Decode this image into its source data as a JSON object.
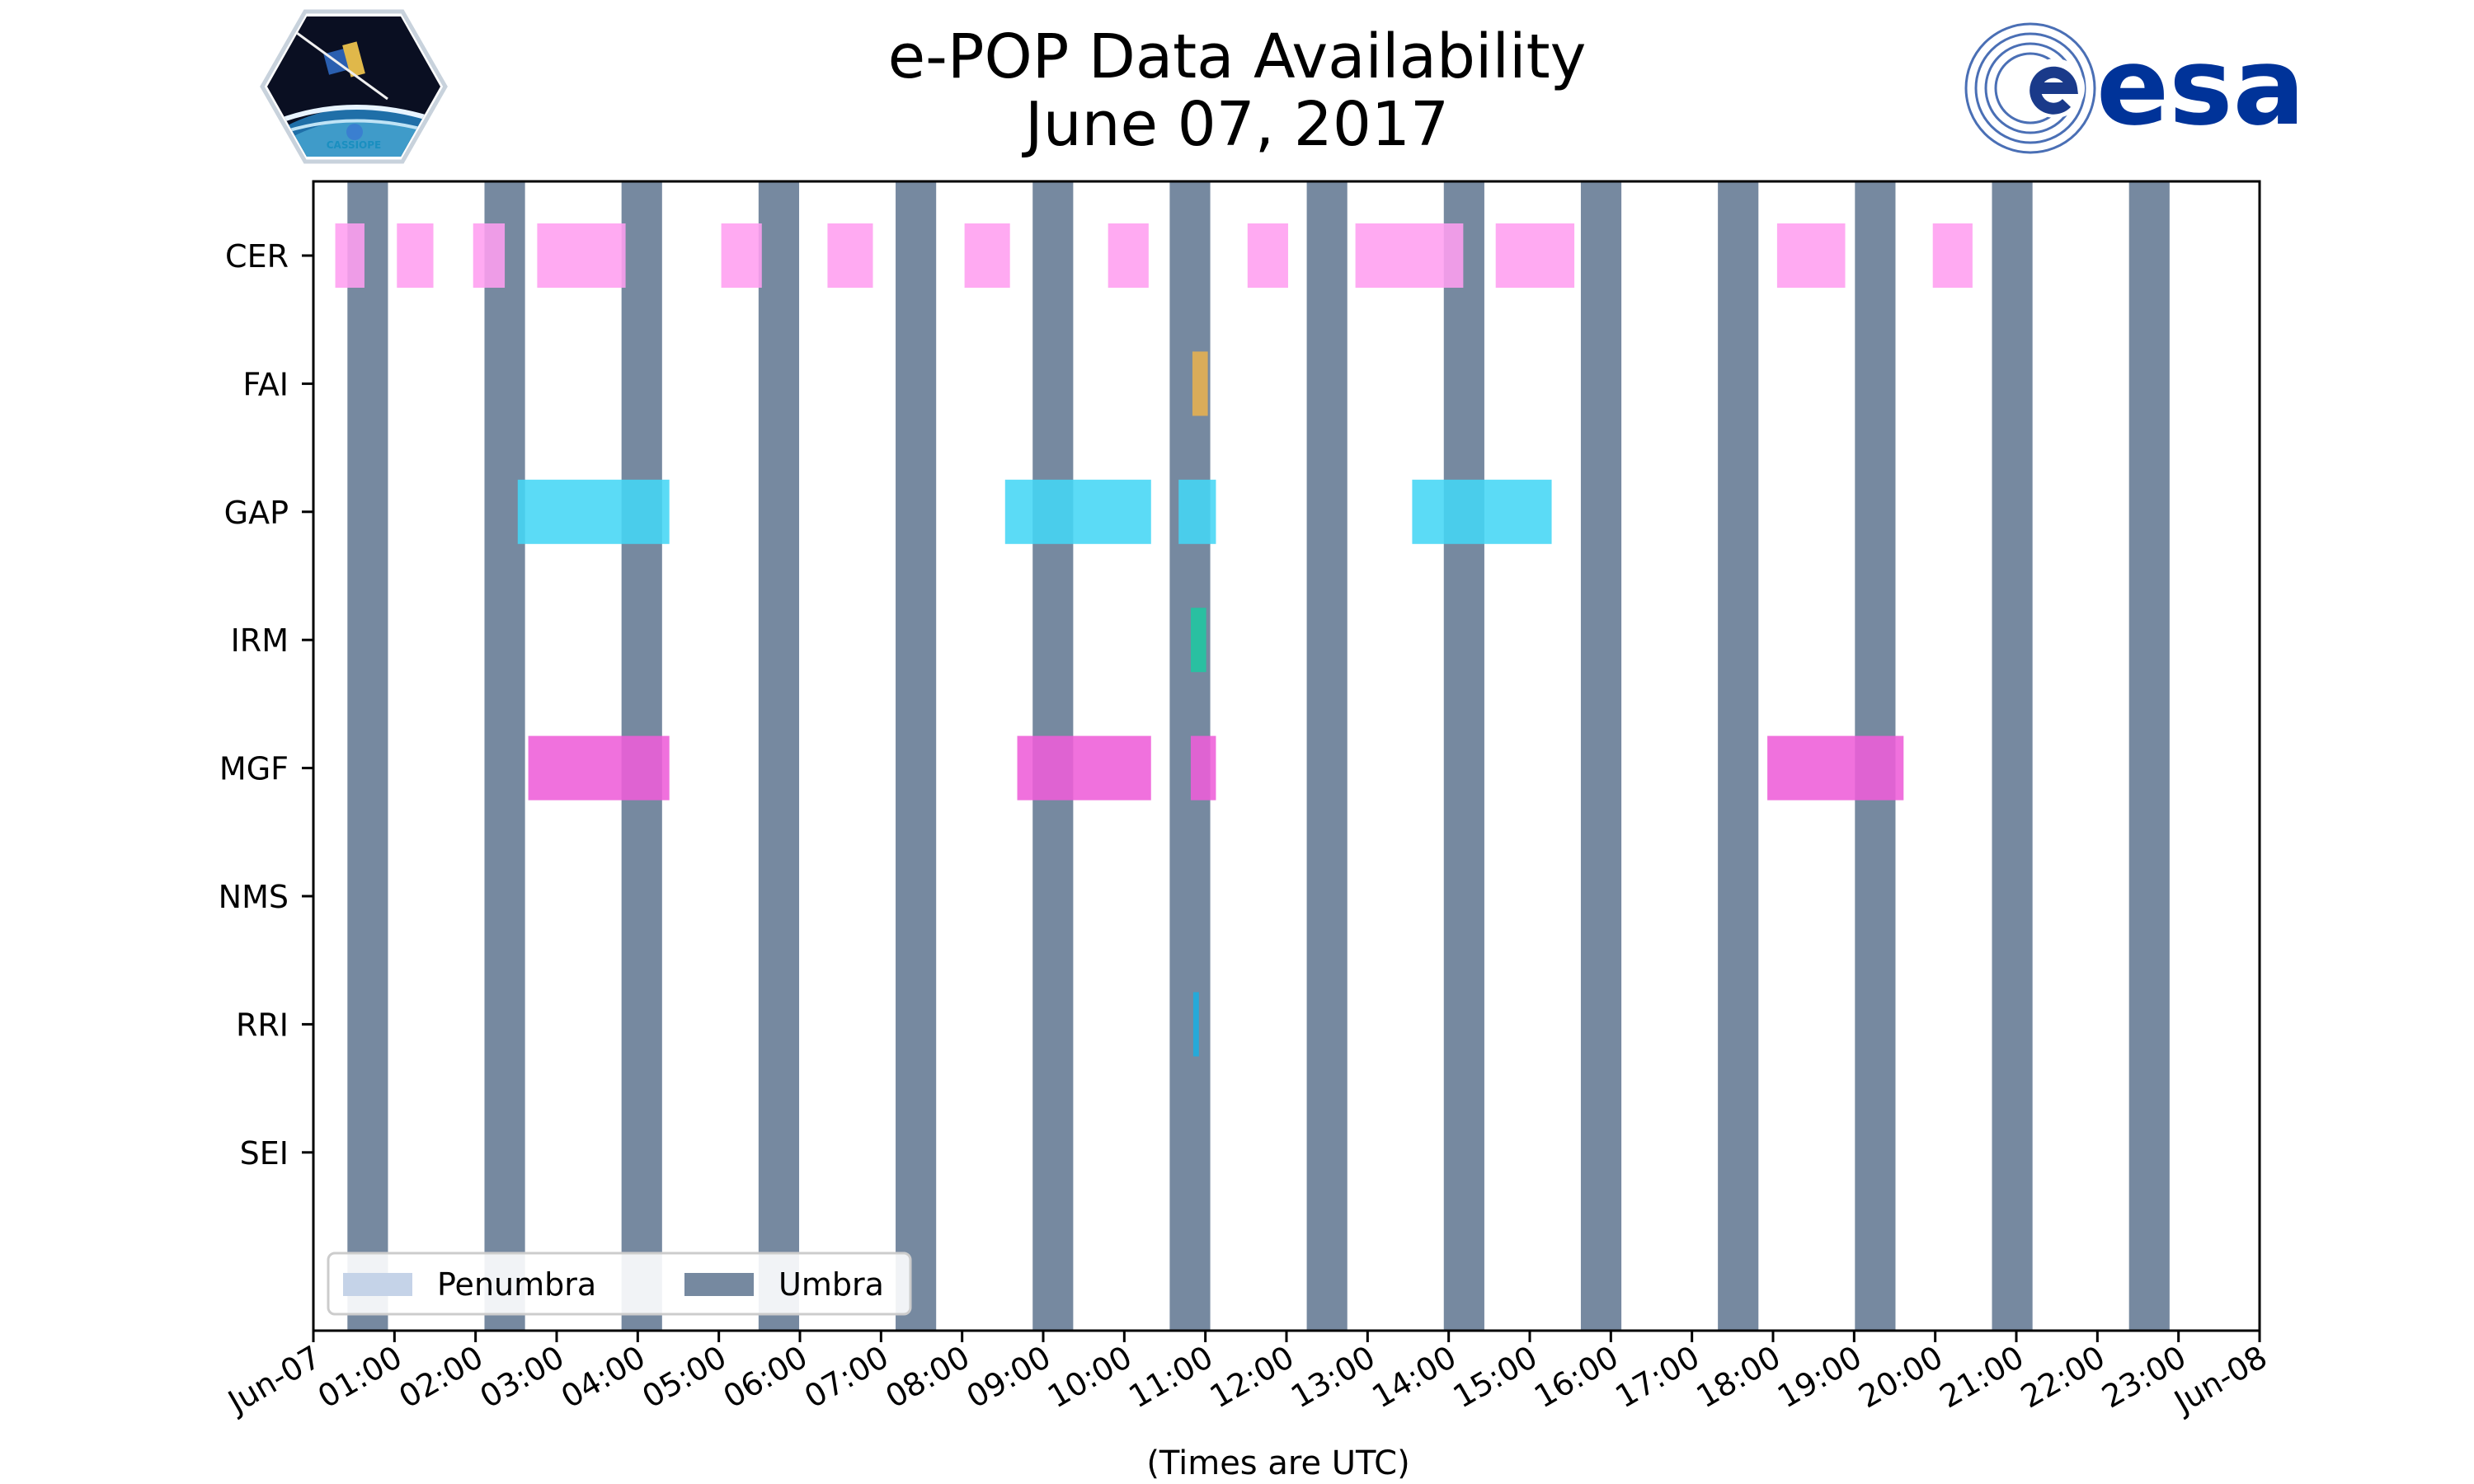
{
  "logos": {
    "left_caption": "CASSIOPE",
    "right_text": "esa"
  },
  "chart_data": {
    "type": "timeline",
    "title": "e-POP Data Availability",
    "subtitle": "June 07, 2017",
    "xlabel": "(Times are UTC)",
    "x_unit": "hours UTC",
    "xlim": [
      0,
      24
    ],
    "x_ticks": [
      0,
      1,
      2,
      3,
      4,
      5,
      6,
      7,
      8,
      9,
      10,
      11,
      12,
      13,
      14,
      15,
      16,
      17,
      18,
      19,
      20,
      21,
      22,
      23,
      24
    ],
    "x_tick_labels": [
      "Jun-07",
      "01:00",
      "02:00",
      "03:00",
      "04:00",
      "05:00",
      "06:00",
      "07:00",
      "08:00",
      "09:00",
      "10:00",
      "11:00",
      "12:00",
      "13:00",
      "14:00",
      "15:00",
      "16:00",
      "17:00",
      "18:00",
      "19:00",
      "20:00",
      "21:00",
      "22:00",
      "23:00",
      "Jun-08"
    ],
    "instruments": [
      "CER",
      "FAI",
      "GAP",
      "IRM",
      "MGF",
      "NMS",
      "RRI",
      "SEI"
    ],
    "umbra_intervals": [
      [
        0.42,
        0.92
      ],
      [
        2.11,
        2.61
      ],
      [
        3.8,
        4.3
      ],
      [
        5.49,
        5.99
      ],
      [
        7.18,
        7.68
      ],
      [
        8.87,
        9.37
      ],
      [
        10.56,
        11.06
      ],
      [
        12.25,
        12.75
      ],
      [
        13.94,
        14.44
      ],
      [
        15.63,
        16.13
      ],
      [
        17.32,
        17.82
      ],
      [
        19.01,
        19.51
      ],
      [
        20.7,
        21.2
      ],
      [
        22.39,
        22.89
      ]
    ],
    "penumbra_intervals": [],
    "legend": [
      {
        "label": "Penumbra",
        "color": "#c5d3e8"
      },
      {
        "label": "Umbra",
        "color": "#7689a0"
      }
    ],
    "legend_position": "lower-left",
    "series": [
      {
        "name": "CER",
        "color": "#ff9ef0",
        "intervals": [
          [
            0.27,
            0.63
          ],
          [
            1.03,
            1.48
          ],
          [
            1.97,
            2.36
          ],
          [
            2.76,
            3.85
          ],
          [
            5.03,
            5.53
          ],
          [
            6.34,
            6.9
          ],
          [
            8.03,
            8.59
          ],
          [
            9.8,
            10.3
          ],
          [
            11.52,
            12.02
          ],
          [
            12.85,
            14.18
          ],
          [
            14.58,
            15.55
          ],
          [
            18.05,
            18.89
          ],
          [
            19.97,
            20.46
          ]
        ]
      },
      {
        "name": "FAI",
        "color": "#e8b04e",
        "intervals": [
          [
            10.84,
            11.03
          ]
        ]
      },
      {
        "name": "GAP",
        "color": "#44d6f5",
        "intervals": [
          [
            2.52,
            4.39
          ],
          [
            8.53,
            10.33
          ],
          [
            10.67,
            11.13
          ],
          [
            13.55,
            15.27
          ]
        ]
      },
      {
        "name": "IRM",
        "color": "#1fc7a0",
        "intervals": [
          [
            10.82,
            11.01
          ]
        ]
      },
      {
        "name": "MGF",
        "color": "#ee5dd8",
        "intervals": [
          [
            2.65,
            4.39
          ],
          [
            8.68,
            10.33
          ],
          [
            10.82,
            11.13
          ],
          [
            17.93,
            19.61
          ]
        ]
      },
      {
        "name": "NMS",
        "color": "#888888",
        "intervals": []
      },
      {
        "name": "RRI",
        "color": "#1aaee0",
        "intervals": [
          [
            10.85,
            10.92
          ]
        ]
      },
      {
        "name": "SEI",
        "color": "#888888",
        "intervals": []
      }
    ]
  }
}
